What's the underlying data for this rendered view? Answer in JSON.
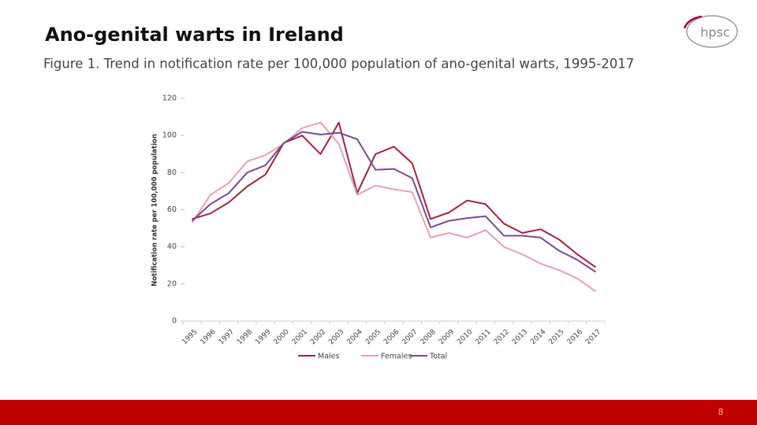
{
  "slide": {
    "title": "Ano-genital warts in Ireland",
    "logo": "hpsc",
    "page_number": "8"
  },
  "chart_data": {
    "type": "line",
    "title": "Figure 1. Trend in notification rate per 100,000 population of ano-genital warts, 1995-2017",
    "y_label": "Notification rate per 100,000 population",
    "categories": [
      "1995",
      "1996",
      "1997",
      "1998",
      "1999",
      "2000",
      "2001",
      "2002",
      "2003",
      "2004",
      "2005",
      "2006",
      "2007",
      "2008",
      "2009",
      "2010",
      "2011",
      "2012",
      "2013",
      "2014",
      "2015",
      "2016",
      "2017"
    ],
    "series": [
      {
        "name": "Males",
        "color": "#a3223f",
        "values": [
          55,
          58,
          64,
          72.5,
          79,
          96,
          100,
          90,
          107,
          69,
          90,
          94,
          85,
          55,
          58.5,
          65,
          63,
          52.5,
          47.5,
          49.5,
          44,
          36,
          29
        ]
      },
      {
        "name": "Females",
        "color": "#e6a1b3",
        "values": [
          53,
          68,
          74.5,
          86,
          89.5,
          95.5,
          104,
          107,
          95.5,
          68,
          73,
          71,
          69.5,
          45,
          47.5,
          45,
          49,
          40,
          36,
          31,
          27.5,
          23,
          16
        ]
      },
      {
        "name": "Total",
        "color": "#7b4a8c",
        "values": [
          54,
          63,
          69,
          80,
          84,
          96,
          102,
          100.5,
          101.5,
          98,
          81.5,
          82,
          77,
          50.5,
          54,
          55.5,
          56.5,
          46,
          46,
          45,
          38,
          33,
          26.5
        ]
      }
    ],
    "ylim": [
      0,
      120
    ],
    "yticks": [
      0,
      20,
      40,
      60,
      80,
      100,
      120
    ],
    "grid": false,
    "legend": "bottom"
  }
}
